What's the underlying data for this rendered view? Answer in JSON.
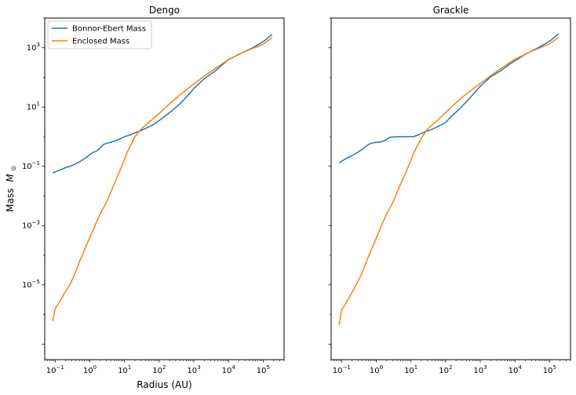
{
  "colors": {
    "bonnor_ebert": "#1f77b4",
    "enclosed": "#ff7f0e"
  },
  "chart_data": [
    {
      "type": "line",
      "title": "Dengo",
      "xlabel": "Radius (AU)",
      "ylabel": "Mass",
      "ylabel_math": "M",
      "ylabel_sub": "⊙",
      "xscale": "log",
      "yscale": "log",
      "xlim": [
        0.05,
        400000
      ],
      "ylim": [
        3e-08,
        10000
      ],
      "grid": false,
      "legend": "top-left",
      "xticks": [
        {
          "value": 0.1,
          "base": "10",
          "exp": "−1"
        },
        {
          "value": 1,
          "base": "10",
          "exp": "0"
        },
        {
          "value": 10,
          "base": "10",
          "exp": "1"
        },
        {
          "value": 100,
          "base": "10",
          "exp": "2"
        },
        {
          "value": 1000,
          "base": "10",
          "exp": "3"
        },
        {
          "value": 10000,
          "base": "10",
          "exp": "4"
        },
        {
          "value": 100000,
          "base": "10",
          "exp": "5"
        }
      ],
      "yticks": [
        {
          "value": 1e-05,
          "base": "10",
          "exp": "−5"
        },
        {
          "value": 0.001,
          "base": "10",
          "exp": "−3"
        },
        {
          "value": 0.1,
          "base": "10",
          "exp": "−1"
        },
        {
          "value": 10,
          "base": "10",
          "exp": "1"
        },
        {
          "value": 1000,
          "base": "10",
          "exp": "3"
        }
      ],
      "series": [
        {
          "name": "Bonnor-Ebert Mass",
          "color": "#1f77b4",
          "x": [
            0.085,
            0.12,
            0.2,
            0.3,
            0.5,
            0.8,
            1.2,
            1.6,
            2.0,
            2.5,
            3.5,
            5.0,
            7.0,
            10.0,
            15.0,
            20.0,
            30.0,
            45.0,
            70.0,
            100.0,
            150.0,
            250.0,
            400.0,
            700.0,
            1000.0,
            2000.0,
            4000.0,
            7000.0,
            10000.0,
            20000.0,
            50000.0,
            100000.0,
            180000.0
          ],
          "y": [
            0.06,
            0.07,
            0.09,
            0.105,
            0.14,
            0.2,
            0.29,
            0.33,
            0.42,
            0.55,
            0.62,
            0.7,
            0.82,
            1.0,
            1.15,
            1.35,
            1.6,
            2.0,
            2.6,
            3.5,
            5.0,
            8.0,
            13.0,
            26.0,
            42.0,
            90.0,
            160.0,
            280.0,
            400.0,
            600.0,
            1000.0,
            1600.0,
            2800.0
          ]
        },
        {
          "name": "Enclosed Mass",
          "color": "#ff7f0e",
          "x": [
            0.085,
            0.1,
            0.13,
            0.18,
            0.25,
            0.35,
            0.5,
            0.7,
            1.0,
            1.5,
            2.0,
            3.0,
            5.0,
            8.0,
            12.0,
            20.0,
            30.0,
            50.0,
            100.0,
            200.0,
            400.0,
            1000.0,
            2000.0,
            5000.0,
            10000.0,
            30000.0,
            100000.0,
            180000.0
          ],
          "y": [
            6e-07,
            1.6e-06,
            2.5e-06,
            5e-06,
            9e-06,
            2e-05,
            6e-05,
            0.00015,
            0.0004,
            0.0012,
            0.0025,
            0.006,
            0.025,
            0.09,
            0.3,
            1.0,
            1.8,
            3.0,
            6.0,
            13.0,
            26.0,
            60.0,
            110.0,
            230.0,
            400.0,
            750.0,
            1300.0,
            2200.0
          ]
        }
      ]
    },
    {
      "type": "line",
      "title": "Grackle",
      "xlabel": "",
      "ylabel": "",
      "xscale": "log",
      "yscale": "log",
      "xlim": [
        0.05,
        400000
      ],
      "ylim": [
        3e-08,
        10000
      ],
      "grid": false,
      "xticks": [
        {
          "value": 0.1,
          "base": "10",
          "exp": "−1"
        },
        {
          "value": 1,
          "base": "10",
          "exp": "0"
        },
        {
          "value": 10,
          "base": "10",
          "exp": "1"
        },
        {
          "value": 100,
          "base": "10",
          "exp": "2"
        },
        {
          "value": 1000,
          "base": "10",
          "exp": "3"
        },
        {
          "value": 10000,
          "base": "10",
          "exp": "4"
        },
        {
          "value": 100000,
          "base": "10",
          "exp": "5"
        }
      ],
      "yticks": [],
      "series": [
        {
          "name": "",
          "color": "#1f77b4",
          "x": [
            0.085,
            0.12,
            0.2,
            0.3,
            0.45,
            0.6,
            0.8,
            1.2,
            1.7,
            2.5,
            3.5,
            5.0,
            8.0,
            12.0,
            18.0,
            25.0,
            40.0,
            60.0,
            100.0,
            150.0,
            250.0,
            500.0,
            1000.0,
            2000.0,
            4000.0,
            7000.0,
            10000.0,
            20000.0,
            50000.0,
            100000.0,
            180000.0
          ],
          "y": [
            0.13,
            0.17,
            0.23,
            0.3,
            0.42,
            0.55,
            0.62,
            0.65,
            0.72,
            0.95,
            0.98,
            0.98,
            1.0,
            1.0,
            1.2,
            1.45,
            1.75,
            2.2,
            3.0,
            5.0,
            8.5,
            20.0,
            50.0,
            105.0,
            170.0,
            280.0,
            360.0,
            600.0,
            1050.0,
            1650.0,
            2900.0
          ]
        },
        {
          "name": "",
          "color": "#ff7f0e",
          "x": [
            0.085,
            0.1,
            0.13,
            0.18,
            0.25,
            0.35,
            0.5,
            0.7,
            1.0,
            1.5,
            2.0,
            3.0,
            5.0,
            8.0,
            12.0,
            20.0,
            30.0,
            50.0,
            100.0,
            200.0,
            400.0,
            1000.0,
            2000.0,
            5000.0,
            10000.0,
            30000.0,
            100000.0,
            180000.0
          ],
          "y": [
            4.5e-07,
            1.4e-06,
            2.3e-06,
            4.5e-06,
            9e-06,
            1.9e-05,
            5.5e-05,
            0.00014,
            0.00038,
            0.0012,
            0.0025,
            0.006,
            0.025,
            0.085,
            0.28,
            0.9,
            1.8,
            3.0,
            6.5,
            14.0,
            28.0,
            62.0,
            115.0,
            240.0,
            410.0,
            760.0,
            1350.0,
            2200.0
          ]
        }
      ]
    }
  ]
}
